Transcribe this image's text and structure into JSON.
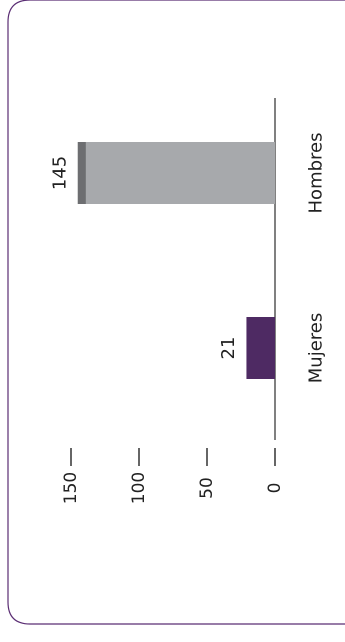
{
  "chart_data": {
    "type": "bar",
    "orientation": "rotated-90",
    "categories": [
      "Mujeres",
      "Hombres"
    ],
    "values": [
      21,
      145
    ],
    "value_labels": [
      "21",
      "145"
    ],
    "ylim": [
      0,
      150
    ],
    "y_ticks": [
      0,
      50,
      100,
      150
    ],
    "y_tick_labels": [
      "0",
      "50",
      "100",
      "150"
    ],
    "title": "",
    "xlabel": "",
    "ylabel": "",
    "grid": false,
    "legend": "none",
    "colors": {
      "Mujeres": "#4e2a63",
      "Hombres": "#a7a9ac",
      "hombres_cap": "#6d6e71",
      "frame_border": "#5a2d73",
      "axis": "#000000"
    }
  }
}
